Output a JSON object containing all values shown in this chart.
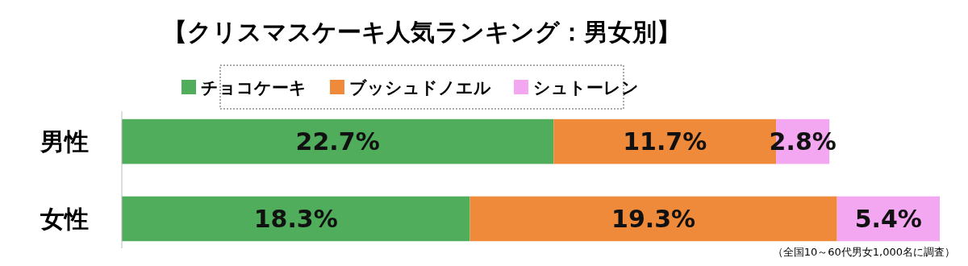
{
  "chart_data": {
    "type": "bar",
    "orientation": "horizontal",
    "stacked": true,
    "title": "【クリスマスケーキ人気ランキング：男女別】",
    "categories": [
      "男性",
      "女性"
    ],
    "series": [
      {
        "name": "チョコケーキ",
        "color": "#4fad5b",
        "values": [
          22.7,
          18.3
        ],
        "value_labels": [
          "22.7%",
          "18.3%"
        ]
      },
      {
        "name": "ブッシュドノエル",
        "color": "#ef8a3a",
        "values": [
          11.7,
          19.3
        ],
        "value_labels": [
          "11.7%",
          "19.3%"
        ]
      },
      {
        "name": "シュトーレン",
        "color": "#f2a7f0",
        "values": [
          2.8,
          5.4
        ],
        "value_labels": [
          "2.8%",
          "5.4%"
        ]
      }
    ],
    "legend": "top",
    "annotations": [
      "（全国10～60代男女1,000名に調査）"
    ]
  }
}
